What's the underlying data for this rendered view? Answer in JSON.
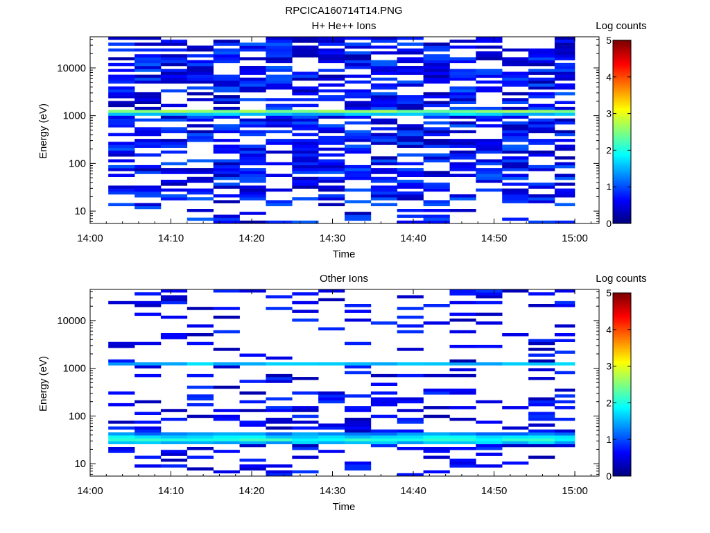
{
  "figure": {
    "title": "RPCICA160714T14.PNG"
  },
  "chart_data": [
    {
      "type": "heatmap",
      "title": "H+ He++ Ions",
      "xlabel": "Time",
      "ylabel": "Energy (eV)",
      "x_tick_labels": [
        "14:00",
        "14:10",
        "14:20",
        "14:30",
        "14:40",
        "14:50",
        "15:00"
      ],
      "xlim": [
        "14:00",
        "15:03"
      ],
      "y_scale": "log",
      "ylim": [
        5.5,
        45000
      ],
      "y_tick_labels": [
        "10",
        "100",
        "1000",
        "10000"
      ],
      "colorbar": {
        "label": "Log counts",
        "range": [
          0,
          5
        ],
        "tick_labels": [
          "0",
          "1",
          "2",
          "3",
          "4",
          "5"
        ],
        "colormap": "jet"
      },
      "time_bins": [
        "14:02:15",
        "14:05:30",
        "14:08:45",
        "14:12:00",
        "14:15:15",
        "14:18:30",
        "14:21:45",
        "14:25:00",
        "14:28:15",
        "14:31:30",
        "14:34:45",
        "14:38:00",
        "14:41:15",
        "14:44:30",
        "14:47:45",
        "14:51:00",
        "14:54:15",
        "14:57:30",
        "15:00:00"
      ],
      "energy_range_ev": [
        5.5,
        45000
      ],
      "dense_energy_range_ev": [
        17,
        45000
      ],
      "sparse_energy_range_ev": [
        5.5,
        17
      ],
      "fill_fraction": 0.62,
      "features": [
        {
          "energy_ev": 1220,
          "width_ev": [
            1060,
            1400
          ],
          "log_counts": 2.7,
          "description_note": ""
        }
      ],
      "background_log_counts": [
        0.2,
        1.1
      ]
    },
    {
      "type": "heatmap",
      "title": "Other Ions",
      "xlabel": "Time",
      "ylabel": "Energy (eV)",
      "x_tick_labels": [
        "14:00",
        "14:10",
        "14:20",
        "14:30",
        "14:40",
        "14:50",
        "15:00"
      ],
      "xlim": [
        "14:00",
        "15:03"
      ],
      "y_scale": "log",
      "ylim": [
        5.5,
        45000
      ],
      "y_tick_labels": [
        "10",
        "100",
        "1000",
        "10000"
      ],
      "colorbar": {
        "label": "Log counts",
        "range": [
          0,
          5
        ],
        "tick_labels": [
          "0",
          "1",
          "2",
          "3",
          "4",
          "5"
        ],
        "colormap": "jet"
      },
      "time_bins": [
        "14:02:15",
        "14:05:30",
        "14:08:45",
        "14:12:00",
        "14:15:15",
        "14:18:30",
        "14:21:45",
        "14:25:00",
        "14:28:15",
        "14:31:30",
        "14:34:45",
        "14:38:00",
        "14:41:15",
        "14:44:30",
        "14:47:45",
        "14:51:00",
        "14:54:15",
        "14:57:30",
        "15:00:00"
      ],
      "energy_range_ev": [
        5.5,
        45000
      ],
      "dense_energy_range_ev": [
        17,
        320
      ],
      "sparse_energy_range_ev": [
        320,
        45000
      ],
      "fill_fraction": 0.35,
      "features": [
        {
          "energy_ev": 1230,
          "width_ev": [
            1080,
            1420
          ],
          "log_counts": 1.6,
          "description_note": ""
        },
        {
          "energy_ev": 33,
          "width_ev": [
            25,
            44
          ],
          "log_counts": 2.1,
          "description_note": ""
        }
      ],
      "background_log_counts": [
        0.2,
        0.9
      ]
    }
  ]
}
